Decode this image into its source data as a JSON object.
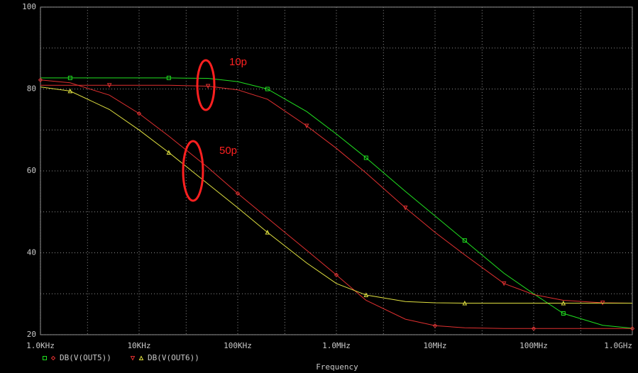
{
  "chart_data": {
    "type": "line",
    "x": [
      1000,
      2000,
      5000,
      10000,
      20000,
      50000,
      100000,
      200000,
      500000,
      1000000,
      2000000,
      5000000,
      10000000,
      20000000,
      50000000,
      100000000,
      200000000,
      500000000,
      1000000000
    ],
    "xlim": [
      1000,
      1000000000
    ],
    "xscale": "log",
    "xticks": [
      {
        "value": 1000,
        "label": "1.0KHz"
      },
      {
        "value": 10000,
        "label": "10KHz"
      },
      {
        "value": 100000,
        "label": "100KHz"
      },
      {
        "value": 1000000,
        "label": "1.0MHz"
      },
      {
        "value": 10000000,
        "label": "10MHz"
      },
      {
        "value": 100000000,
        "label": "100MHz"
      },
      {
        "value": 1000000000,
        "label": "1.0GHz"
      }
    ],
    "xminor": [
      3000,
      30000,
      300000,
      3000000,
      30000000,
      300000000
    ],
    "ylim": [
      20,
      100
    ],
    "yticks": [
      20,
      40,
      60,
      80,
      100
    ],
    "yminor": [
      30,
      50,
      70,
      90
    ],
    "grid": true,
    "xlabel": "Frequency",
    "series": [
      {
        "name": "DB(V(OUT5))",
        "color": "#20e020",
        "marker": "square",
        "values": [
          82.7,
          82.7,
          82.7,
          82.7,
          82.7,
          82.6,
          81.8,
          80,
          74.5,
          69,
          63.2,
          55,
          49,
          43,
          35,
          30,
          25.2,
          22.3,
          21.6
        ]
      },
      {
        "name": "DB(V(OUT5))",
        "color": "#e03030",
        "marker": "diamond",
        "values": [
          82.2,
          81.5,
          78.5,
          74,
          68.5,
          60.8,
          54.5,
          48.5,
          40.6,
          34.6,
          28.4,
          23.8,
          22.2,
          21.7,
          21.5,
          21.5,
          21.5,
          21.5,
          21.5
        ]
      },
      {
        "name": "DB(V(OUT6))",
        "color": "#e03030",
        "marker": "triangle-down",
        "values": [
          80.9,
          80.9,
          80.9,
          80.9,
          80.9,
          80.7,
          79.8,
          77.5,
          71,
          65.5,
          59.5,
          51,
          45,
          39.5,
          32.5,
          29.8,
          28.4,
          27.8,
          27.7
        ]
      },
      {
        "name": "DB(V(OUT6))",
        "color": "#e0e040",
        "marker": "triangle-up",
        "values": [
          80.5,
          79.5,
          75,
          70,
          64.5,
          56.8,
          51,
          45,
          37.5,
          32.5,
          29.7,
          28.1,
          27.8,
          27.7,
          27.7,
          27.7,
          27.7,
          27.7,
          27.7
        ]
      }
    ],
    "annotations": [
      {
        "text": "10p",
        "color": "#ff2020"
      },
      {
        "text": "50p",
        "color": "#ff2020"
      }
    ]
  }
}
